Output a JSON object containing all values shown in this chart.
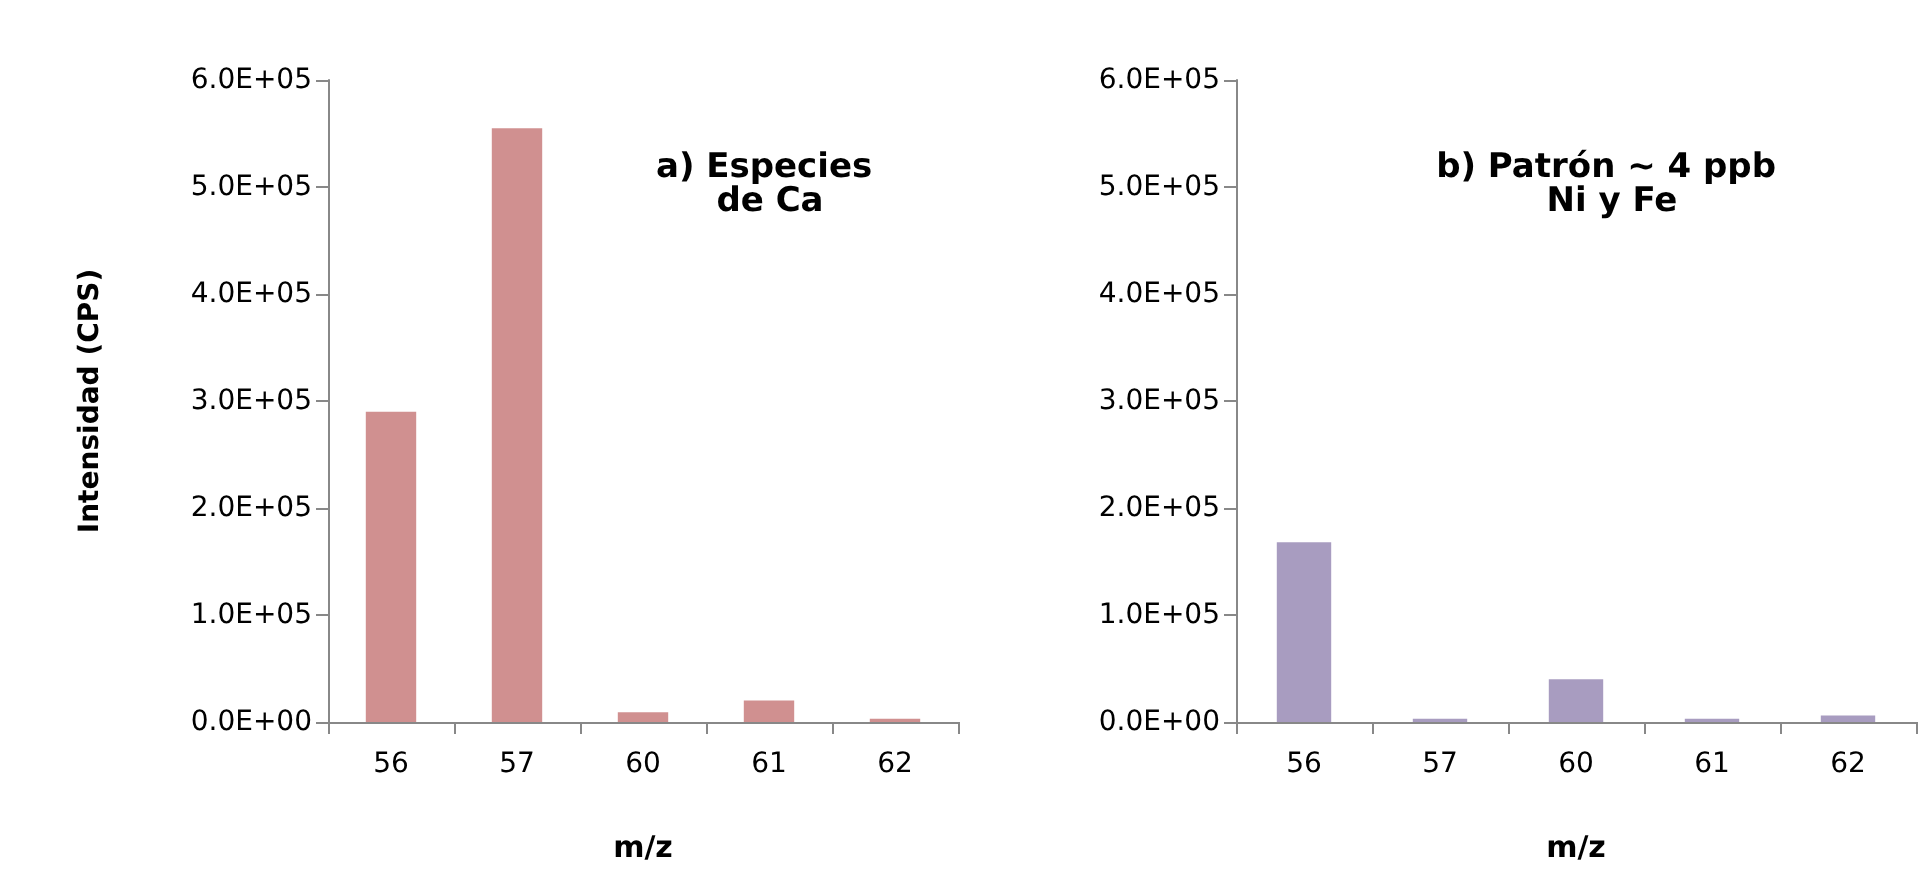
{
  "chart_data": [
    {
      "type": "bar",
      "title": "a) Especies de Ca",
      "xlabel": "m/z",
      "ylabel": "Intensidad (CPS)",
      "categories": [
        "56",
        "57",
        "60",
        "61",
        "62"
      ],
      "values": [
        290000,
        555000,
        9000,
        20000,
        3000
      ],
      "color": "#d09090",
      "ylim": [
        0,
        600000
      ],
      "yticks": [
        {
          "value": 0,
          "label": "0.0E+00"
        },
        {
          "value": 100000,
          "label": "1.0E+05"
        },
        {
          "value": 200000,
          "label": "2.0E+05"
        },
        {
          "value": 300000,
          "label": "3.0E+05"
        },
        {
          "value": 400000,
          "label": "4.0E+05"
        },
        {
          "value": 500000,
          "label": "5.0E+05"
        },
        {
          "value": 600000,
          "label": "6.0E+05"
        }
      ]
    },
    {
      "type": "bar",
      "title": "b) Patrón ~ 4 ppb Ni y Fe",
      "xlabel": "m/z",
      "categories": [
        "56",
        "57",
        "60",
        "61",
        "62"
      ],
      "values": [
        168000,
        3000,
        40000,
        3000,
        6000
      ],
      "color": "#a89cc0",
      "ylim": [
        0,
        600000
      ],
      "yticks": [
        {
          "value": 0,
          "label": "0.0E+00"
        },
        {
          "value": 100000,
          "label": "1.0E+05"
        },
        {
          "value": 200000,
          "label": "2.0E+05"
        },
        {
          "value": 300000,
          "label": "3.0E+05"
        },
        {
          "value": 400000,
          "label": "4.0E+05"
        },
        {
          "value": 500000,
          "label": "5.0E+05"
        },
        {
          "value": 600000,
          "label": "6.0E+05"
        }
      ]
    }
  ]
}
